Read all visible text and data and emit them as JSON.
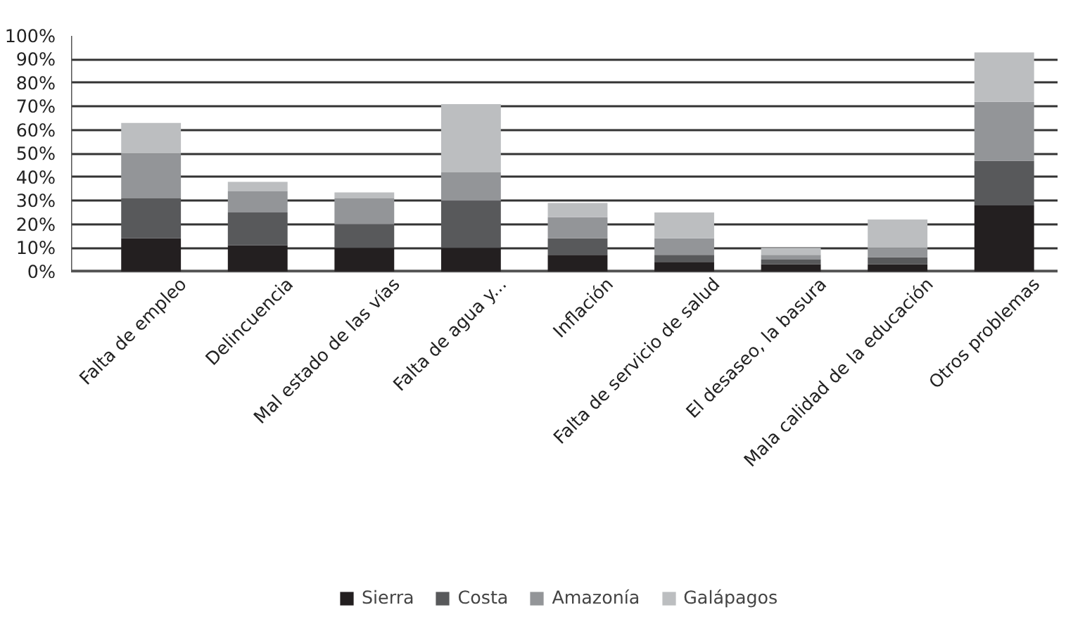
{
  "chart_data": {
    "type": "bar",
    "stacked": true,
    "categories": [
      "Falta de empleo",
      "Delincuencia",
      "Mal estado de las vías",
      "Falta de agua y...",
      "Inflación",
      "Falta de servicio de salud",
      "El desaseo, la basura",
      "Mala calidad de la educación",
      "Otros problemas"
    ],
    "series": [
      {
        "name": "Sierra",
        "color": "#231f20",
        "values": [
          14,
          11,
          10,
          10,
          7,
          4,
          3,
          3,
          28
        ]
      },
      {
        "name": "Costa",
        "color": "#58595b",
        "values": [
          17,
          14,
          10,
          20,
          7,
          3,
          2,
          3,
          19
        ]
      },
      {
        "name": "Amazonía",
        "color": "#939598",
        "values": [
          19,
          9,
          11,
          12,
          9,
          7,
          2,
          4,
          25
        ]
      },
      {
        "name": "Galápagos",
        "color": "#bcbec0",
        "values": [
          13,
          4,
          2.5,
          29,
          6,
          11,
          3,
          12,
          21
        ]
      }
    ],
    "ylim": [
      0,
      100
    ],
    "yticks": [
      {
        "value": 0,
        "label": "0%"
      },
      {
        "value": 10,
        "label": "10%"
      },
      {
        "value": 20,
        "label": "20%"
      },
      {
        "value": 30,
        "label": "30%"
      },
      {
        "value": 40,
        "label": "40%"
      },
      {
        "value": 50,
        "label": "50%"
      },
      {
        "value": 60,
        "label": "60%"
      },
      {
        "value": 70,
        "label": "70%"
      },
      {
        "value": 80,
        "label": "80%"
      },
      {
        "value": 90,
        "label": "90%"
      },
      {
        "value": 100,
        "label": "100%"
      }
    ],
    "grid": "y",
    "legend": "bottom"
  }
}
